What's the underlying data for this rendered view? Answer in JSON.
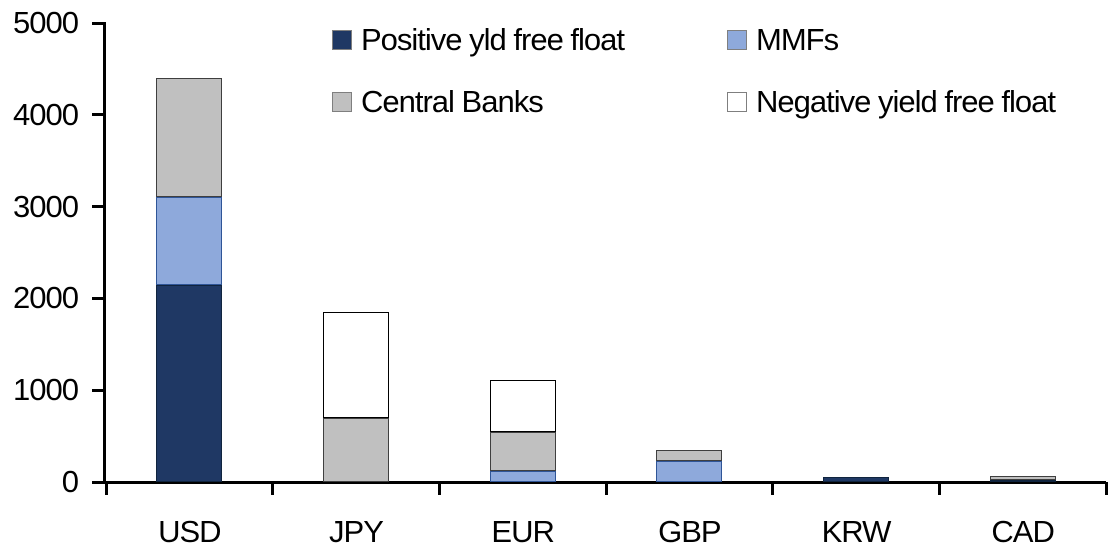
{
  "chart_data": {
    "type": "bar",
    "stacked": true,
    "title": "",
    "xlabel": "",
    "ylabel": "",
    "categories": [
      "USD",
      "JPY",
      "EUR",
      "GBP",
      "KRW",
      "CAD"
    ],
    "series": [
      {
        "name": "Positive yld free float",
        "color": "#1F3864",
        "border_color": "#10243E",
        "values": [
          2150,
          0,
          0,
          0,
          50,
          25
        ]
      },
      {
        "name": "MMFs",
        "color": "#8EA9DB",
        "border_color": "#2F5597",
        "values": [
          950,
          0,
          120,
          230,
          0,
          0
        ]
      },
      {
        "name": "Central Banks",
        "color": "#C0C0C0",
        "border_color": "#3F3F3F",
        "values": [
          1300,
          700,
          430,
          120,
          0,
          40
        ]
      },
      {
        "name": "Negative yield free float",
        "color": "#FFFFFF",
        "border_color": "#000000",
        "values": [
          0,
          1150,
          560,
          0,
          0,
          0
        ]
      }
    ],
    "ylim": [
      0,
      5000
    ],
    "yticks": [
      0,
      1000,
      2000,
      3000,
      4000,
      5000
    ],
    "grid": false,
    "legend_position": "top",
    "legend_columns": 2,
    "axis_color": "#000000",
    "background": "#FFFFFF"
  }
}
